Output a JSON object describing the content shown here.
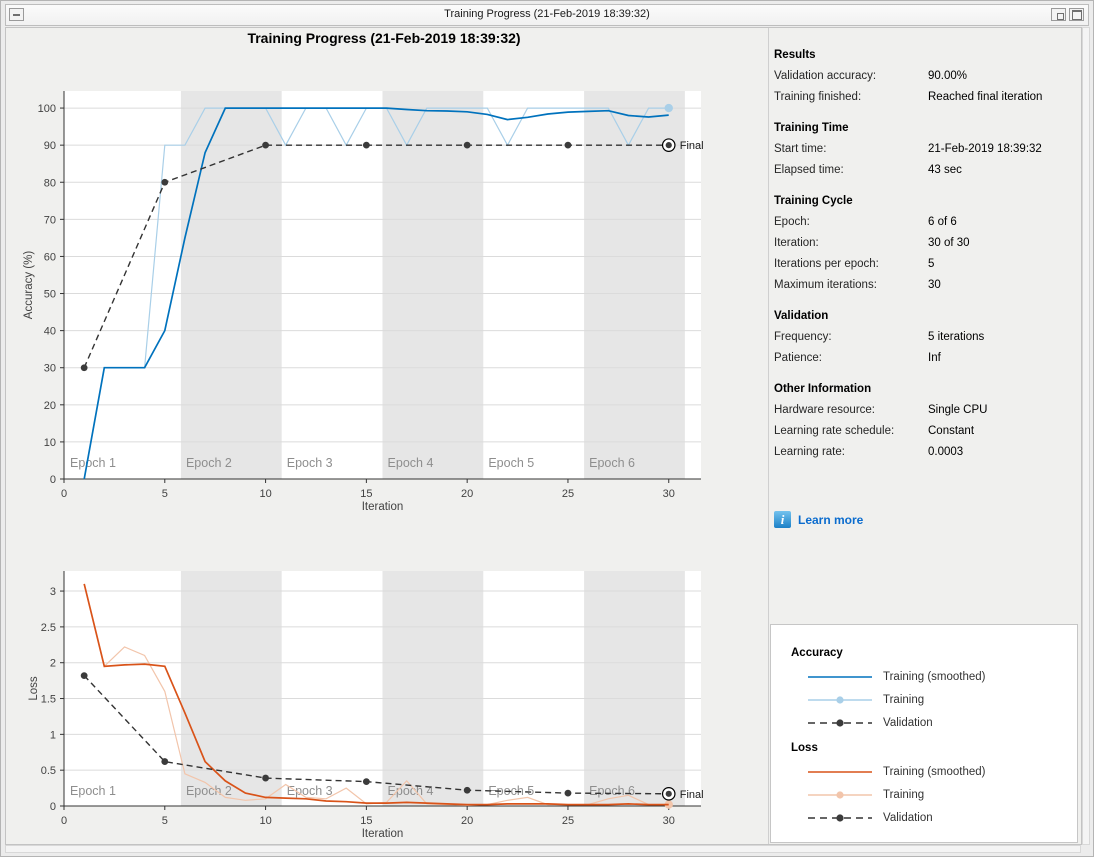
{
  "window": {
    "title": "Training Progress (21-Feb-2019 18:39:32)",
    "buttons": {
      "menu": "window-menu",
      "restore": "restore-window",
      "maximize": "maximize-window"
    }
  },
  "figure_title": "Training Progress (21-Feb-2019 18:39:32)",
  "colors": {
    "accuracy_smoothed": "#0072BD",
    "accuracy_raw": "#A9CFE8",
    "loss_smoothed": "#D95319",
    "loss_raw": "#F2C5AB",
    "validation": "#333333",
    "epoch_band": "#E6E6E6",
    "gridline": "#DBDBDB",
    "axis": "#333333",
    "epoch_label": "#8E8E8E",
    "link_blue": "#0B6CCE",
    "figure_bg": "#F0F0EE"
  },
  "right_panel": {
    "sections": [
      {
        "heading": "Results",
        "rows": [
          [
            "Validation accuracy:",
            "90.00%"
          ],
          [
            "Training finished:",
            "Reached final iteration"
          ]
        ]
      },
      {
        "heading": "Training Time",
        "rows": [
          [
            "Start time:",
            "21-Feb-2019 18:39:32"
          ],
          [
            "Elapsed time:",
            "43 sec"
          ]
        ]
      },
      {
        "heading": "Training Cycle",
        "rows": [
          [
            "Epoch:",
            "6 of 6"
          ],
          [
            "Iteration:",
            "30 of 30"
          ],
          [
            "Iterations per epoch:",
            "5"
          ],
          [
            "Maximum iterations:",
            "30"
          ]
        ]
      },
      {
        "heading": "Validation",
        "rows": [
          [
            "Frequency:",
            "5 iterations"
          ],
          [
            "Patience:",
            "Inf"
          ]
        ]
      },
      {
        "heading": "Other Information",
        "rows": [
          [
            "Hardware resource:",
            "Single CPU"
          ],
          [
            "Learning rate schedule:",
            "Constant"
          ],
          [
            "Learning rate:",
            "0.0003"
          ]
        ]
      }
    ],
    "learn_more": "Learn more",
    "info_icon": "i"
  },
  "legend": {
    "groups": [
      {
        "title": "Accuracy",
        "entries": [
          {
            "label": "Training (smoothed)",
            "style": "solid",
            "color": "#0072BD"
          },
          {
            "label": "Training",
            "style": "solid-marker",
            "color": "#A9CFE8"
          },
          {
            "label": "Validation",
            "style": "dashed-marker",
            "color": "#333333",
            "marker_color": "#3B3B3B"
          }
        ]
      },
      {
        "title": "Loss",
        "entries": [
          {
            "label": "Training (smoothed)",
            "style": "solid",
            "color": "#D95319"
          },
          {
            "label": "Training",
            "style": "solid-marker",
            "color": "#F2C5AB"
          },
          {
            "label": "Validation",
            "style": "dashed-marker",
            "color": "#333333",
            "marker_color": "#3B3B3B"
          }
        ]
      }
    ]
  },
  "chart_data": [
    {
      "type": "line",
      "name": "accuracy-plot",
      "xlabel": "Iteration",
      "ylabel": "Accuracy (%)",
      "xlim": [
        0,
        31.6
      ],
      "ylim": [
        0,
        104.6
      ],
      "xticks": [
        0,
        5,
        10,
        15,
        20,
        25,
        30
      ],
      "yticks": [
        0,
        10,
        20,
        30,
        40,
        50,
        60,
        70,
        80,
        90,
        100
      ],
      "grid": "horizontal",
      "epochs": [
        {
          "label": "Epoch 1",
          "x0": 0,
          "x1": 5.8,
          "shaded": false,
          "label_x": 0.3
        },
        {
          "label": "Epoch 2",
          "x0": 5.8,
          "x1": 10.8,
          "shaded": true,
          "label_x": 6.05
        },
        {
          "label": "Epoch 3",
          "x0": 10.8,
          "x1": 15.8,
          "shaded": false,
          "label_x": 11.05
        },
        {
          "label": "Epoch 4",
          "x0": 15.8,
          "x1": 20.8,
          "shaded": true,
          "label_x": 16.05
        },
        {
          "label": "Epoch 5",
          "x0": 20.8,
          "x1": 25.8,
          "shaded": false,
          "label_x": 21.05
        },
        {
          "label": "Epoch 6",
          "x0": 25.8,
          "x1": 30.8,
          "shaded": true,
          "label_x": 26.05
        }
      ],
      "series": [
        {
          "name": "Training (smoothed)",
          "color": "#0072BD",
          "style": "solid",
          "width": 1.7,
          "x": [
            1,
            2,
            3,
            4,
            5,
            6,
            7,
            8,
            9,
            10,
            11,
            12,
            13,
            14,
            15,
            16,
            17,
            18,
            19,
            20,
            21,
            22,
            23,
            24,
            25,
            26,
            27,
            28,
            29,
            30
          ],
          "y": [
            0,
            30,
            30,
            30,
            40,
            65,
            88,
            100,
            100,
            100,
            100,
            100,
            100,
            100,
            100,
            100,
            99.6,
            99.3,
            99.2,
            99,
            98.3,
            96.9,
            97.5,
            98.4,
            98.9,
            99.1,
            99.3,
            98,
            97.6,
            98.1
          ]
        },
        {
          "name": "Training",
          "color": "#A9CFE8",
          "style": "solid",
          "width": 1.2,
          "behind": true,
          "end_marker": true,
          "x": [
            1,
            2,
            3,
            4,
            5,
            6,
            7,
            8,
            9,
            10,
            11,
            12,
            13,
            14,
            15,
            16,
            17,
            18,
            19,
            20,
            21,
            22,
            23,
            24,
            25,
            26,
            27,
            28,
            29,
            30
          ],
          "y": [
            0,
            30,
            30,
            30,
            90,
            90,
            100,
            100,
            100,
            100,
            90,
            100,
            100,
            90,
            100,
            100,
            90,
            100,
            100,
            100,
            100,
            90,
            100,
            100,
            100,
            100,
            100,
            90,
            100,
            100
          ]
        },
        {
          "name": "Validation",
          "color": "#333333",
          "style": "dashed",
          "width": 1.4,
          "markers": true,
          "x": [
            1,
            5,
            10,
            15,
            20,
            25,
            30
          ],
          "y": [
            30,
            80,
            90,
            90,
            90,
            90,
            90
          ]
        }
      ],
      "final": {
        "x": 30,
        "y": 90,
        "label": "Final"
      }
    },
    {
      "type": "line",
      "name": "loss-plot",
      "xlabel": "Iteration",
      "ylabel": "Loss",
      "xlim": [
        0,
        31.6
      ],
      "ylim": [
        0,
        3.28
      ],
      "xticks": [
        0,
        5,
        10,
        15,
        20,
        25,
        30
      ],
      "yticks": [
        0,
        0.5,
        1,
        1.5,
        2,
        2.5,
        3
      ],
      "grid": "horizontal",
      "epochs": [
        {
          "label": "Epoch 1",
          "x0": 0,
          "x1": 5.8,
          "shaded": false,
          "label_x": 0.3
        },
        {
          "label": "Epoch 2",
          "x0": 5.8,
          "x1": 10.8,
          "shaded": true,
          "label_x": 6.05
        },
        {
          "label": "Epoch 3",
          "x0": 10.8,
          "x1": 15.8,
          "shaded": false,
          "label_x": 11.05
        },
        {
          "label": "Epoch 4",
          "x0": 15.8,
          "x1": 20.8,
          "shaded": true,
          "label_x": 16.05
        },
        {
          "label": "Epoch 5",
          "x0": 20.8,
          "x1": 25.8,
          "shaded": false,
          "label_x": 21.05
        },
        {
          "label": "Epoch 6",
          "x0": 25.8,
          "x1": 30.8,
          "shaded": true,
          "label_x": 26.05
        }
      ],
      "series": [
        {
          "name": "Training (smoothed)",
          "color": "#D95319",
          "style": "solid",
          "width": 1.7,
          "x": [
            1,
            2,
            3,
            4,
            5,
            6,
            7,
            8,
            9,
            10,
            11,
            12,
            13,
            14,
            15,
            16,
            17,
            18,
            19,
            20,
            21,
            22,
            23,
            24,
            25,
            26,
            27,
            28,
            29,
            30
          ],
          "y": [
            3.1,
            1.95,
            1.97,
            1.98,
            1.95,
            1.3,
            0.62,
            0.35,
            0.18,
            0.12,
            0.11,
            0.1,
            0.07,
            0.06,
            0.04,
            0.04,
            0.05,
            0.04,
            0.03,
            0.02,
            0.02,
            0.03,
            0.03,
            0.03,
            0.02,
            0.02,
            0.02,
            0.03,
            0.02,
            0.02
          ]
        },
        {
          "name": "Training",
          "color": "#F2C5AB",
          "style": "solid",
          "width": 1.2,
          "behind": true,
          "end_marker": true,
          "x": [
            1,
            2,
            3,
            4,
            5,
            6,
            7,
            8,
            9,
            10,
            11,
            12,
            13,
            14,
            15,
            16,
            17,
            18,
            19,
            20,
            21,
            22,
            23,
            24,
            25,
            26,
            27,
            28,
            29,
            30
          ],
          "y": [
            3.1,
            1.95,
            2.22,
            2.1,
            1.6,
            0.45,
            0.33,
            0.12,
            0.08,
            0.1,
            0.3,
            0.12,
            0.1,
            0.25,
            0.03,
            0.05,
            0.35,
            0.03,
            0.02,
            0.01,
            0.02,
            0.08,
            0.12,
            0.02,
            0.02,
            0.02,
            0.1,
            0.15,
            0.02,
            0.02
          ]
        },
        {
          "name": "Validation",
          "color": "#333333",
          "style": "dashed",
          "width": 1.4,
          "markers": true,
          "x": [
            1,
            5,
            10,
            15,
            20,
            25,
            30
          ],
          "y": [
            1.82,
            0.62,
            0.39,
            0.34,
            0.22,
            0.18,
            0.17
          ]
        }
      ],
      "final": {
        "x": 30,
        "y": 0.17,
        "label": "Final"
      }
    }
  ]
}
